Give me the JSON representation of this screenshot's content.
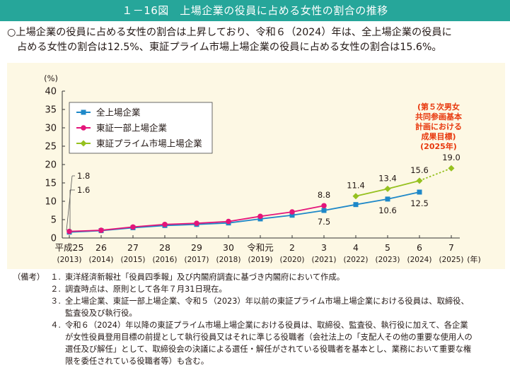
{
  "figure": {
    "title": "１－16図　上場企業の役員に占める女性の割合の推移",
    "summary_line1": "○上場企業の役員に占める女性の割合は上昇しており、令和６（2024）年は、全上場企業の役員に",
    "summary_line2": "占める女性の割合は12.5%、東証プライム市場上場企業の役員に占める女性の割合は15.6%。"
  },
  "chart_data": {
    "type": "line",
    "y_unit": "(%)",
    "x_unit": "(年)",
    "ylim": [
      0,
      40
    ],
    "yticks": [
      0,
      5,
      10,
      15,
      20,
      25,
      30,
      35,
      40
    ],
    "grid": false,
    "legend_position": "top-left",
    "categories": [
      {
        "era": "平成25",
        "year": "(2013)"
      },
      {
        "era": "26",
        "year": "(2014)"
      },
      {
        "era": "27",
        "year": "(2015)"
      },
      {
        "era": "28",
        "year": "(2016)"
      },
      {
        "era": "29",
        "year": "(2017)"
      },
      {
        "era": "30",
        "year": "(2018)"
      },
      {
        "era": "令和元",
        "year": "(2019)"
      },
      {
        "era": "2",
        "year": "(2020)"
      },
      {
        "era": "3",
        "year": "(2021)"
      },
      {
        "era": "4",
        "year": "(2022)"
      },
      {
        "era": "5",
        "year": "(2023)"
      },
      {
        "era": "6",
        "year": "(2024)"
      },
      {
        "era": "7",
        "year": "(2025)"
      }
    ],
    "series": [
      {
        "name": "全上場企業",
        "color": "#1e88c8",
        "marker": "square",
        "values": [
          1.6,
          2.0,
          2.8,
          3.4,
          3.7,
          4.1,
          5.2,
          6.2,
          7.5,
          9.1,
          10.6,
          12.5,
          null
        ],
        "labels": {
          "0": "1.6",
          "8": "7.5",
          "10": "10.6",
          "11": "12.5"
        }
      },
      {
        "name": "東証一部上場企業",
        "color": "#e4157a",
        "marker": "circle",
        "values": [
          1.8,
          2.1,
          3.0,
          3.7,
          4.0,
          4.5,
          5.9,
          7.1,
          8.8,
          null,
          null,
          null,
          null
        ],
        "labels": {
          "0": "1.8",
          "8": "8.8"
        }
      },
      {
        "name": "東証プライム市場上場企業",
        "color": "#96c11f",
        "marker": "diamond",
        "values": [
          null,
          null,
          null,
          null,
          null,
          null,
          null,
          null,
          null,
          11.4,
          13.4,
          15.6,
          19.0
        ],
        "dashed_from_index": 11,
        "labels": {
          "9": "11.4",
          "10": "13.4",
          "11": "15.6",
          "12": "19.0"
        }
      }
    ],
    "target_annotation": [
      "(第５次男女",
      "共同参画基本",
      "計画における",
      "成果目標)",
      "(2025年)"
    ],
    "target_annotation_color": "#e8380d"
  },
  "notes": {
    "head": "（備考）",
    "items": [
      {
        "num": "１.",
        "lines": [
          "東洋経済新報社「役員四季報」及び内閣府調査に基づき内閣府において作成。"
        ]
      },
      {
        "num": "２.",
        "lines": [
          "調査時点は、原則として各年７月31日現在。"
        ]
      },
      {
        "num": "３.",
        "lines": [
          "全上場企業、東証一部上場企業、令和５（2023）年以前の東証プライム市場上場企業における役員は、取締役、",
          "監査役及び執行役。"
        ]
      },
      {
        "num": "４.",
        "lines": [
          "令和６（2024）年以降の東証プライム市場上場企業における役員は、取締役、監査役、執行役に加えて、各企業",
          "が女性役員登用目標の前提として執行役員又はそれに準じる役職者（会社法上の「支配人その他の重要な使用人の",
          "選任及び解任」として、取締役会の決議による選任・解任がされている役職者を基本とし、業務において重要な権",
          "限を委任されている役職者等）も含む。"
        ]
      }
    ]
  }
}
